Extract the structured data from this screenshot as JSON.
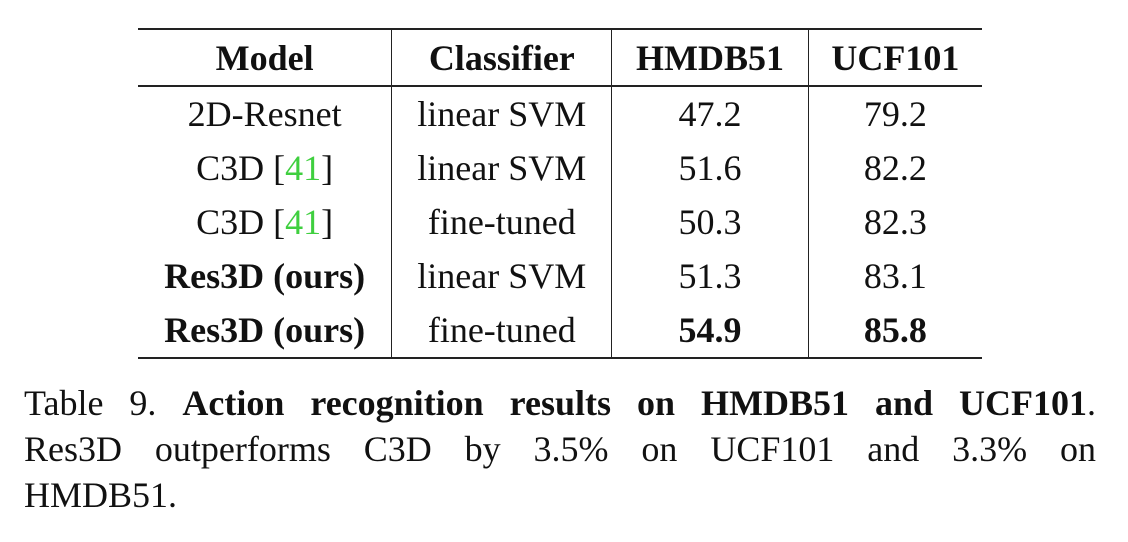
{
  "table": {
    "headers": [
      "Model",
      "Classifier",
      "HMDB51",
      "UCF101"
    ],
    "rows": [
      {
        "model_prefix": "2D-Resnet",
        "cite": "",
        "model_suffix": "",
        "model_bold": false,
        "classifier": "linear SVM",
        "hmdb": "47.2",
        "ucf": "79.2",
        "hmdb_bold": false,
        "ucf_bold": false
      },
      {
        "model_prefix": "C3D [",
        "cite": "41",
        "model_suffix": "]",
        "model_bold": false,
        "classifier": "linear SVM",
        "hmdb": "51.6",
        "ucf": "82.2",
        "hmdb_bold": false,
        "ucf_bold": false
      },
      {
        "model_prefix": "C3D [",
        "cite": "41",
        "model_suffix": "]",
        "model_bold": false,
        "classifier": "fine-tuned",
        "hmdb": "50.3",
        "ucf": "82.3",
        "hmdb_bold": false,
        "ucf_bold": false
      },
      {
        "model_prefix": "Res3D (ours)",
        "cite": "",
        "model_suffix": "",
        "model_bold": true,
        "classifier": "linear SVM",
        "hmdb": "51.3",
        "ucf": "83.1",
        "hmdb_bold": false,
        "ucf_bold": false
      },
      {
        "model_prefix": "Res3D (ours)",
        "cite": "",
        "model_suffix": "",
        "model_bold": true,
        "classifier": "fine-tuned",
        "hmdb": "54.9",
        "ucf": "85.8",
        "hmdb_bold": true,
        "ucf_bold": true
      }
    ]
  },
  "caption": {
    "label": "Table 9.",
    "bold_title": "Action recognition results on HMDB51 and UCF101",
    "title_end": ".",
    "line2": "Res3D outperforms C3D by 3.5% on UCF101 and 3.3% on",
    "line3": "HMDB51."
  },
  "colors": {
    "citation": "#3fcf3f",
    "rule": "#222222"
  }
}
